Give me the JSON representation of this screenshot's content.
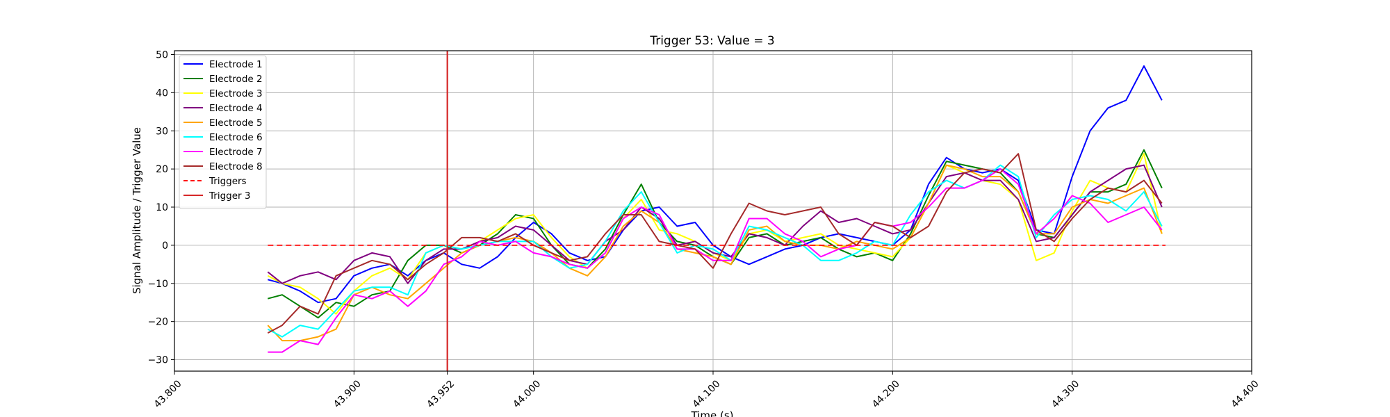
{
  "chart_data": {
    "type": "line",
    "title": "Trigger 53: Value = 3",
    "xlabel": "Time (s)",
    "ylabel": "Signal Amplitude / Trigger Value",
    "xlim": [
      43.8,
      44.4
    ],
    "ylim": [
      -33,
      51
    ],
    "x_ticks": [
      43.8,
      43.9,
      43.952,
      44.0,
      44.1,
      44.2,
      44.3,
      44.4
    ],
    "x_tick_labels": [
      "43.800",
      "43.900",
      "43.952",
      "44.000",
      "44.100",
      "44.200",
      "44.300",
      "44.400"
    ],
    "y_ticks": [
      -30,
      -20,
      -10,
      0,
      10,
      20,
      30,
      40,
      50
    ],
    "y_tick_labels": [
      "−30",
      "−20",
      "−10",
      "0",
      "10",
      "20",
      "30",
      "40",
      "50"
    ],
    "grid": true,
    "legend_position": "top-left",
    "trigger_marker": {
      "name": "Trigger 3",
      "x": 43.952,
      "color": "#d62728"
    },
    "triggers_line": {
      "name": "Triggers",
      "x": [
        43.852,
        44.352
      ],
      "y": [
        0,
        0
      ],
      "color": "#ff0000",
      "dashed": true
    },
    "series": [
      {
        "name": "Electrode 1",
        "color": "#0000ff",
        "x": [
          43.852,
          43.86,
          43.87,
          43.88,
          43.89,
          43.9,
          43.91,
          43.92,
          43.93,
          43.94,
          43.95,
          43.96,
          43.97,
          43.98,
          43.99,
          44.0,
          44.01,
          44.02,
          44.03,
          44.04,
          44.05,
          44.06,
          44.07,
          44.08,
          44.09,
          44.1,
          44.11,
          44.12,
          44.13,
          44.14,
          44.15,
          44.16,
          44.17,
          44.18,
          44.19,
          44.2,
          44.21,
          44.22,
          44.23,
          44.24,
          44.25,
          44.26,
          44.27,
          44.28,
          44.29,
          44.3,
          44.31,
          44.32,
          44.33,
          44.34,
          44.35
        ],
        "y": [
          -9,
          -10,
          -12,
          -15,
          -14,
          -8,
          -6,
          -5,
          -8,
          -4,
          -2,
          -5,
          -6,
          -3,
          2,
          6,
          3,
          -2,
          -4,
          -3,
          4,
          9,
          10,
          5,
          6,
          0,
          -3,
          -5,
          -3,
          -1,
          0,
          2,
          3,
          2,
          1,
          0,
          4,
          16,
          23,
          20,
          19,
          20,
          17,
          4,
          3,
          18,
          30,
          36,
          38,
          47,
          38
        ]
      },
      {
        "name": "Electrode 2",
        "color": "#008000",
        "x": [
          43.852,
          43.86,
          43.87,
          43.88,
          43.89,
          43.9,
          43.91,
          43.92,
          43.93,
          43.94,
          43.95,
          43.96,
          43.97,
          43.98,
          43.99,
          44.0,
          44.01,
          44.02,
          44.03,
          44.04,
          44.05,
          44.06,
          44.07,
          44.08,
          44.09,
          44.1,
          44.11,
          44.12,
          44.13,
          44.14,
          44.15,
          44.16,
          44.17,
          44.18,
          44.19,
          44.2,
          44.21,
          44.22,
          44.23,
          44.24,
          44.25,
          44.26,
          44.27,
          44.28,
          44.29,
          44.3,
          44.31,
          44.32,
          44.33,
          44.34,
          44.35
        ],
        "y": [
          -14,
          -13,
          -16,
          -19,
          -15,
          -16,
          -13,
          -12,
          -4,
          0,
          0,
          -2,
          0,
          3,
          8,
          7,
          0,
          -5,
          -6,
          -1,
          8,
          16,
          6,
          1,
          0,
          -3,
          -5,
          2,
          3,
          0,
          1,
          2,
          -1,
          -3,
          -2,
          -4,
          3,
          13,
          22,
          21,
          20,
          19,
          14,
          3,
          2,
          8,
          14,
          14,
          16,
          25,
          15
        ]
      },
      {
        "name": "Electrode 3",
        "color": "#ffff00",
        "x": [
          43.852,
          43.86,
          43.87,
          43.88,
          43.89,
          43.9,
          43.91,
          43.92,
          43.93,
          43.94,
          43.95,
          43.96,
          43.97,
          43.98,
          43.99,
          44.0,
          44.01,
          44.02,
          44.03,
          44.04,
          44.05,
          44.06,
          44.07,
          44.08,
          44.09,
          44.1,
          44.11,
          44.12,
          44.13,
          44.14,
          44.15,
          44.16,
          44.17,
          44.18,
          44.19,
          44.2,
          44.21,
          44.22,
          44.23,
          44.24,
          44.25,
          44.26,
          44.27,
          44.28,
          44.29,
          44.3,
          44.31,
          44.32,
          44.33,
          44.34,
          44.35
        ],
        "y": [
          -8,
          -10,
          -11,
          -14,
          -18,
          -12,
          -8,
          -6,
          -9,
          -2,
          0,
          -1,
          1,
          4,
          7,
          8,
          2,
          -3,
          -6,
          -2,
          7,
          12,
          4,
          3,
          1,
          -2,
          -4,
          3,
          4,
          1,
          2,
          3,
          0,
          -1,
          -2,
          -3,
          2,
          11,
          21,
          19,
          17,
          16,
          12,
          -4,
          -2,
          9,
          17,
          15,
          14,
          24,
          3
        ]
      },
      {
        "name": "Electrode 4",
        "color": "#800080",
        "x": [
          43.852,
          43.86,
          43.87,
          43.88,
          43.89,
          43.9,
          43.91,
          43.92,
          43.93,
          43.94,
          43.95,
          43.96,
          43.97,
          43.98,
          43.99,
          44.0,
          44.01,
          44.02,
          44.03,
          44.04,
          44.05,
          44.06,
          44.07,
          44.08,
          44.09,
          44.1,
          44.11,
          44.12,
          44.13,
          44.14,
          44.15,
          44.16,
          44.17,
          44.18,
          44.19,
          44.2,
          44.21,
          44.22,
          44.23,
          44.24,
          44.25,
          44.26,
          44.27,
          44.28,
          44.29,
          44.3,
          44.31,
          44.32,
          44.33,
          44.34,
          44.35
        ],
        "y": [
          -7,
          -10,
          -8,
          -7,
          -9,
          -4,
          -2,
          -3,
          -10,
          -4,
          -1,
          -1,
          1,
          2,
          5,
          4,
          0,
          -4,
          -5,
          1,
          4,
          10,
          7,
          0,
          1,
          -2,
          -3,
          3,
          2,
          0,
          5,
          9,
          6,
          7,
          5,
          3,
          4,
          11,
          18,
          19,
          17,
          17,
          12,
          1,
          2,
          8,
          14,
          17,
          20,
          21,
          10
        ]
      },
      {
        "name": "Electrode 5",
        "color": "#ffa500",
        "x": [
          43.852,
          43.86,
          43.87,
          43.88,
          43.89,
          43.9,
          43.91,
          43.92,
          43.93,
          43.94,
          43.95,
          43.96,
          43.97,
          43.98,
          43.99,
          44.0,
          44.01,
          44.02,
          44.03,
          44.04,
          44.05,
          44.06,
          44.07,
          44.08,
          44.09,
          44.1,
          44.11,
          44.12,
          44.13,
          44.14,
          44.15,
          44.16,
          44.17,
          44.18,
          44.19,
          44.2,
          44.21,
          44.22,
          44.23,
          44.24,
          44.25,
          44.26,
          44.27,
          44.28,
          44.29,
          44.3,
          44.31,
          44.32,
          44.33,
          44.34,
          44.35
        ],
        "y": [
          -21,
          -25,
          -25,
          -24,
          -22,
          -13,
          -11,
          -13,
          -14,
          -10,
          -6,
          -2,
          0,
          1,
          2,
          1,
          -2,
          -6,
          -8,
          -3,
          5,
          9,
          6,
          -1,
          -2,
          -3,
          -5,
          4,
          5,
          1,
          0,
          0,
          -1,
          1,
          0,
          -1,
          2,
          11,
          21,
          20,
          18,
          18,
          14,
          3,
          3,
          10,
          12,
          11,
          13,
          15,
          3
        ]
      },
      {
        "name": "Electrode 6",
        "color": "#00ffff",
        "x": [
          43.852,
          43.86,
          43.87,
          43.88,
          43.89,
          43.9,
          43.91,
          43.92,
          43.93,
          43.94,
          43.95,
          43.96,
          43.97,
          43.98,
          43.99,
          44.0,
          44.01,
          44.02,
          44.03,
          44.04,
          44.05,
          44.06,
          44.07,
          44.08,
          44.09,
          44.1,
          44.11,
          44.12,
          44.13,
          44.14,
          44.15,
          44.16,
          44.17,
          44.18,
          44.19,
          44.2,
          44.21,
          44.22,
          44.23,
          44.24,
          44.25,
          44.26,
          44.27,
          44.28,
          44.29,
          44.3,
          44.31,
          44.32,
          44.33,
          44.34,
          44.35
        ],
        "y": [
          -22,
          -24,
          -21,
          -22,
          -17,
          -12,
          -11,
          -11,
          -13,
          -2,
          0,
          -1,
          0,
          1,
          1,
          1,
          -3,
          -6,
          -5,
          1,
          9,
          14,
          6,
          -2,
          0,
          -1,
          -4,
          5,
          4,
          2,
          0,
          -4,
          -4,
          -2,
          1,
          0,
          8,
          14,
          17,
          15,
          17,
          21,
          18,
          2,
          8,
          12,
          13,
          12,
          9,
          14,
          5
        ]
      },
      {
        "name": "Electrode 7",
        "color": "#ff00ff",
        "x": [
          43.852,
          43.86,
          43.87,
          43.88,
          43.89,
          43.9,
          43.91,
          43.92,
          43.93,
          43.94,
          43.95,
          43.96,
          43.97,
          43.98,
          43.99,
          44.0,
          44.01,
          44.02,
          44.03,
          44.04,
          44.05,
          44.06,
          44.07,
          44.08,
          44.09,
          44.1,
          44.11,
          44.12,
          44.13,
          44.14,
          44.15,
          44.16,
          44.17,
          44.18,
          44.19,
          44.2,
          44.21,
          44.22,
          44.23,
          44.24,
          44.25,
          44.26,
          44.27,
          44.28,
          44.29,
          44.3,
          44.31,
          44.32,
          44.33,
          44.34,
          44.35
        ],
        "y": [
          -28,
          -28,
          -25,
          -26,
          -19,
          -13,
          -14,
          -12,
          -16,
          -12,
          -5,
          -3,
          1,
          0,
          1,
          -2,
          -3,
          -5,
          -6,
          -2,
          7,
          10,
          8,
          -1,
          -1,
          -4,
          -4,
          7,
          7,
          3,
          1,
          -3,
          -1,
          0,
          6,
          5,
          6,
          10,
          15,
          15,
          17,
          20,
          16,
          3,
          7,
          13,
          11,
          6,
          8,
          10,
          4
        ]
      },
      {
        "name": "Electrode 8",
        "color": "#a52a2a",
        "x": [
          43.852,
          43.86,
          43.87,
          43.88,
          43.89,
          43.9,
          43.91,
          43.92,
          43.93,
          43.94,
          43.95,
          43.96,
          43.97,
          43.98,
          43.99,
          44.0,
          44.01,
          44.02,
          44.03,
          44.04,
          44.05,
          44.06,
          44.07,
          44.08,
          44.09,
          44.1,
          44.11,
          44.12,
          44.13,
          44.14,
          44.15,
          44.16,
          44.17,
          44.18,
          44.19,
          44.2,
          44.21,
          44.22,
          44.23,
          44.24,
          44.25,
          44.26,
          44.27,
          44.28,
          44.29,
          44.3,
          44.31,
          44.32,
          44.33,
          44.34,
          44.35
        ],
        "y": [
          -23,
          -21,
          -16,
          -18,
          -8,
          -6,
          -4,
          -5,
          -9,
          -5,
          -2,
          2,
          2,
          1,
          3,
          0,
          -2,
          -4,
          -3,
          3,
          8,
          8,
          1,
          0,
          -1,
          -6,
          3,
          11,
          9,
          8,
          9,
          10,
          3,
          0,
          6,
          5,
          2,
          5,
          14,
          19,
          20,
          19,
          24,
          4,
          1,
          7,
          12,
          15,
          14,
          17,
          11
        ]
      }
    ]
  }
}
